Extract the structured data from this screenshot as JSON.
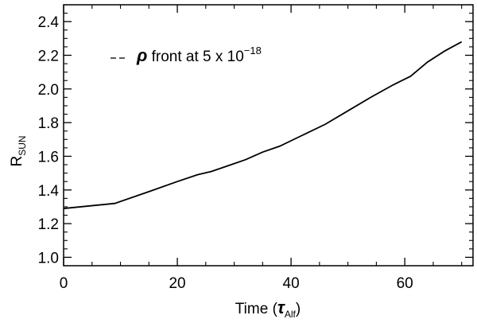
{
  "chart_data": {
    "type": "line",
    "title": "",
    "xlabel": {
      "main": "Time",
      "symbol": "τ",
      "sub": "Alf"
    },
    "ylabel": {
      "main": "R",
      "sub": "SUN"
    },
    "xlim": [
      0,
      72
    ],
    "ylim": [
      0.95,
      2.5
    ],
    "x_ticks": [
      0,
      20,
      40,
      60
    ],
    "y_ticks": [
      1.0,
      1.2,
      1.4,
      1.6,
      1.8,
      2.0,
      2.2,
      2.4
    ],
    "x_tick_labels": [
      "0",
      "20",
      "40",
      "60"
    ],
    "y_tick_labels": [
      "1.0",
      "1.2",
      "1.4",
      "1.6",
      "1.8",
      "2.0",
      "2.2",
      "2.4"
    ],
    "grid": false,
    "legend": {
      "placement": "top-left",
      "symbol": "ρ",
      "text": " front at 5 x 10",
      "exponent": "−18"
    },
    "series": [
      {
        "x": [
          0,
          9,
          15,
          20,
          23.5,
          26,
          29,
          32,
          35,
          38,
          42,
          46,
          50,
          54,
          58,
          61,
          64,
          67,
          70
        ],
        "y": [
          1.29,
          1.32,
          1.39,
          1.45,
          1.49,
          1.51,
          1.545,
          1.58,
          1.625,
          1.66,
          1.725,
          1.79,
          1.87,
          1.95,
          2.025,
          2.075,
          2.16,
          2.225,
          2.28
        ]
      }
    ]
  }
}
